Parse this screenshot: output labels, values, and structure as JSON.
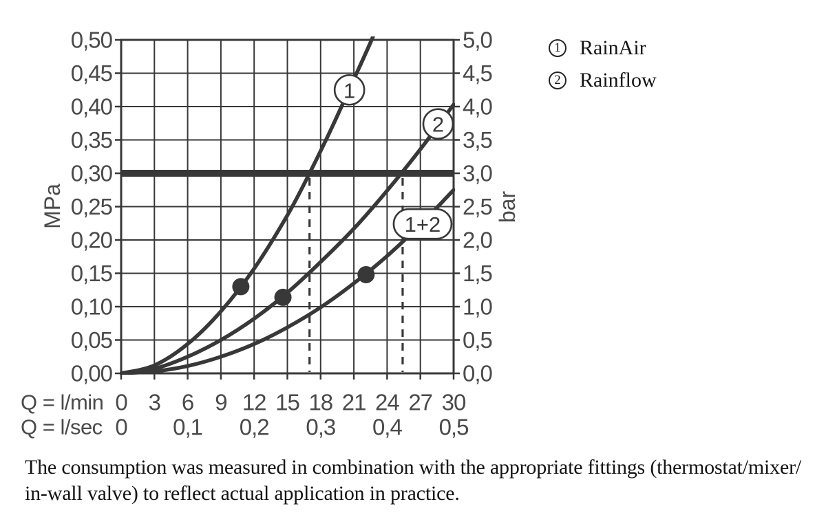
{
  "colors": {
    "background": "#ffffff",
    "ink": "#383838",
    "axis_text": "#4a4a4a",
    "text": "#141414"
  },
  "chart_data": {
    "type": "line",
    "title": "",
    "grid": true,
    "x_axis_primary": {
      "label": "Q = l/min",
      "min": 0,
      "max": 30,
      "ticks": [
        "0",
        "3",
        "6",
        "9",
        "12",
        "15",
        "18",
        "21",
        "24",
        "27",
        "30"
      ]
    },
    "x_axis_secondary": {
      "label": "Q = l/sec",
      "min": 0,
      "max": 0.5,
      "ticks": [
        "0",
        "0,1",
        "0,2",
        "0,3",
        "0,4",
        "0,5"
      ]
    },
    "y_axis_left": {
      "label": "MPa",
      "min": 0,
      "max": 0.5,
      "ticks": [
        "0,50",
        "0,45",
        "0,40",
        "0,35",
        "0,30",
        "0,25",
        "0,20",
        "0,15",
        "0,10",
        "0,05",
        "0,00"
      ]
    },
    "y_axis_right": {
      "label": "bar",
      "min": 0,
      "max": 5,
      "ticks": [
        "5,0",
        "4,5",
        "4,0",
        "3,5",
        "3,0",
        "2,5",
        "2,0",
        "1,5",
        "1,0",
        "0,5",
        "0,0"
      ]
    },
    "series": [
      {
        "name": "RainAir",
        "badge": "1",
        "badge_shape": "circle",
        "badge_at": {
          "q": 20.6,
          "p": 0.425
        },
        "points_q_mpa": [
          [
            0,
            0
          ],
          [
            3,
            0.012
          ],
          [
            6,
            0.044
          ],
          [
            9,
            0.093
          ],
          [
            12,
            0.157
          ],
          [
            15,
            0.237
          ],
          [
            17,
            0.3
          ],
          [
            19,
            0.368
          ],
          [
            21,
            0.441
          ],
          [
            22.6,
            0.5
          ],
          [
            23.4,
            0.535
          ]
        ]
      },
      {
        "name": "Rainflow",
        "badge": "2",
        "badge_shape": "circle",
        "badge_at": {
          "q": 28.6,
          "p": 0.374
        },
        "points_q_mpa": [
          [
            0,
            0
          ],
          [
            3,
            0.007
          ],
          [
            6,
            0.025
          ],
          [
            9,
            0.05
          ],
          [
            12,
            0.082
          ],
          [
            15,
            0.121
          ],
          [
            18,
            0.167
          ],
          [
            21,
            0.217
          ],
          [
            24,
            0.274
          ],
          [
            27,
            0.336
          ],
          [
            30,
            0.403
          ]
        ]
      },
      {
        "name": "RainAir + Rainflow",
        "badge": "1+2",
        "badge_shape": "stadium",
        "badge_at": {
          "q": 27.2,
          "p": 0.224
        },
        "points_q_mpa": [
          [
            0,
            0
          ],
          [
            3,
            0.003
          ],
          [
            6,
            0.011
          ],
          [
            9,
            0.025
          ],
          [
            12,
            0.044
          ],
          [
            15,
            0.069
          ],
          [
            18,
            0.099
          ],
          [
            21,
            0.135
          ],
          [
            24,
            0.176
          ],
          [
            27,
            0.223
          ],
          [
            30,
            0.275
          ]
        ]
      }
    ],
    "markers_q_mpa": [
      [
        10.8,
        0.13
      ],
      [
        14.6,
        0.114
      ],
      [
        22.1,
        0.148
      ]
    ],
    "reference_line_mpa": 0.3,
    "dashed_guides_q": [
      17,
      25.4
    ],
    "legend_position": "top-right-outside"
  },
  "legend": {
    "items": [
      {
        "number": "1",
        "label": "RainAir"
      },
      {
        "number": "2",
        "label": "Rainflow"
      }
    ]
  },
  "caption": {
    "line1": "The consumption was measured in combination with the appropriate fittings (thermostat/mixer/",
    "line2": "in-wall valve) to reflect actual application in practice."
  }
}
